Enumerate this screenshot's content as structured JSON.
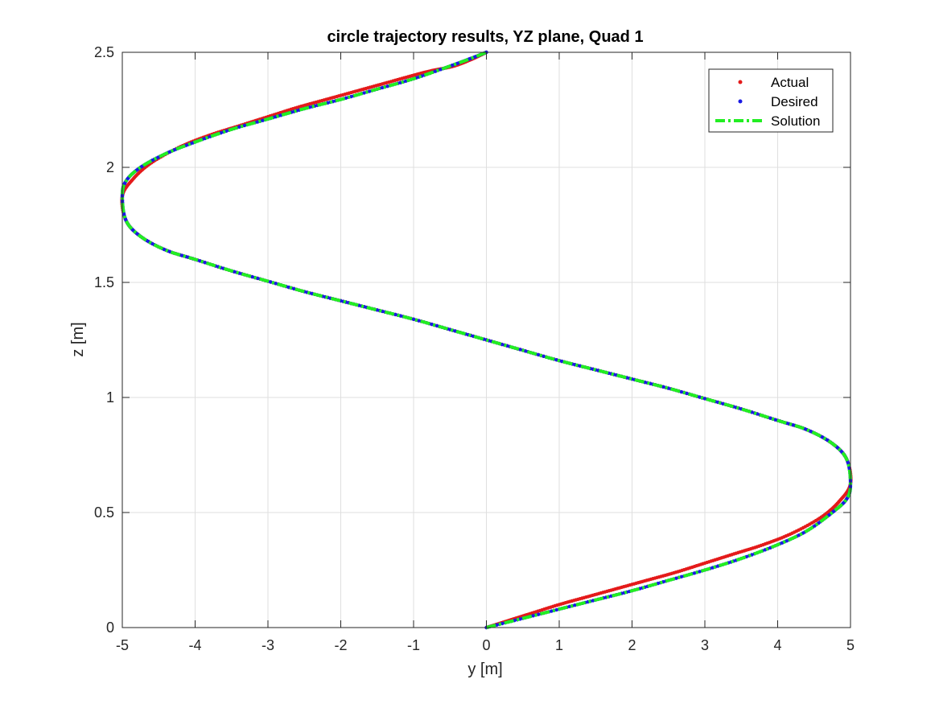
{
  "chart_data": {
    "type": "line",
    "title": "circle trajectory results, YZ plane, Quad 1",
    "xlabel": "y [m]",
    "ylabel": "z [m]",
    "xlim": [
      -5,
      5
    ],
    "ylim": [
      0,
      2.5
    ],
    "xticks": [
      -5,
      -4,
      -3,
      -2,
      -1,
      0,
      1,
      2,
      3,
      4,
      5
    ],
    "yticks": [
      0,
      0.5,
      1,
      1.5,
      2,
      2.5
    ],
    "xtick_labels": [
      "-5",
      "-4",
      "-3",
      "-2",
      "-1",
      "0",
      "1",
      "2",
      "3",
      "4",
      "5"
    ],
    "ytick_labels": [
      "0",
      "0.5",
      "1",
      "1.5",
      "2",
      "2.5"
    ],
    "grid": true,
    "legend_position": "top-right",
    "series": [
      {
        "name": "Actual",
        "style": "dots",
        "color": "#e41a1a",
        "points": [
          [
            0.0,
            0.0
          ],
          [
            0.3,
            0.03
          ],
          [
            0.6,
            0.06
          ],
          [
            1.0,
            0.1
          ],
          [
            1.4,
            0.135
          ],
          [
            1.8,
            0.17
          ],
          [
            2.2,
            0.205
          ],
          [
            2.6,
            0.24
          ],
          [
            3.0,
            0.28
          ],
          [
            3.4,
            0.32
          ],
          [
            3.8,
            0.36
          ],
          [
            4.2,
            0.41
          ],
          [
            4.6,
            0.48
          ],
          [
            4.85,
            0.55
          ],
          [
            5.0,
            0.625
          ],
          [
            4.95,
            0.73
          ],
          [
            4.75,
            0.8
          ],
          [
            4.4,
            0.86
          ],
          [
            4.0,
            0.9
          ],
          [
            3.5,
            0.95
          ],
          [
            3.0,
            0.995
          ],
          [
            2.5,
            1.04
          ],
          [
            2.0,
            1.08
          ],
          [
            1.5,
            1.12
          ],
          [
            1.0,
            1.16
          ],
          [
            0.5,
            1.205
          ],
          [
            0.0,
            1.25
          ],
          [
            -0.5,
            1.295
          ],
          [
            -1.0,
            1.34
          ],
          [
            -1.5,
            1.38
          ],
          [
            -2.0,
            1.42
          ],
          [
            -2.5,
            1.46
          ],
          [
            -3.0,
            1.505
          ],
          [
            -3.5,
            1.55
          ],
          [
            -4.0,
            1.6
          ],
          [
            -4.4,
            1.64
          ],
          [
            -4.75,
            1.7
          ],
          [
            -4.95,
            1.77
          ],
          [
            -5.0,
            1.875
          ],
          [
            -4.85,
            1.95
          ],
          [
            -4.6,
            2.02
          ],
          [
            -4.2,
            2.09
          ],
          [
            -3.8,
            2.14
          ],
          [
            -3.4,
            2.18
          ],
          [
            -3.0,
            2.22
          ],
          [
            -2.6,
            2.26
          ],
          [
            -2.2,
            2.295
          ],
          [
            -1.8,
            2.33
          ],
          [
            -1.4,
            2.365
          ],
          [
            -1.0,
            2.4
          ],
          [
            -0.75,
            2.42
          ],
          [
            -0.45,
            2.44
          ],
          [
            -0.2,
            2.47
          ],
          [
            0.0,
            2.5
          ]
        ]
      },
      {
        "name": "Desired",
        "style": "dots",
        "color": "#1a1ae4",
        "points": [
          [
            0.0,
            0.0
          ],
          [
            0.5,
            0.04
          ],
          [
            1.0,
            0.08
          ],
          [
            1.5,
            0.12
          ],
          [
            2.0,
            0.16
          ],
          [
            2.5,
            0.205
          ],
          [
            3.0,
            0.25
          ],
          [
            3.5,
            0.3
          ],
          [
            4.0,
            0.36
          ],
          [
            4.4,
            0.42
          ],
          [
            4.75,
            0.5
          ],
          [
            4.95,
            0.56
          ],
          [
            5.0,
            0.625
          ],
          [
            4.95,
            0.73
          ],
          [
            4.75,
            0.8
          ],
          [
            4.4,
            0.86
          ],
          [
            4.0,
            0.9
          ],
          [
            3.5,
            0.95
          ],
          [
            3.0,
            0.995
          ],
          [
            2.5,
            1.04
          ],
          [
            2.0,
            1.08
          ],
          [
            1.5,
            1.12
          ],
          [
            1.0,
            1.16
          ],
          [
            0.5,
            1.205
          ],
          [
            0.0,
            1.25
          ],
          [
            -0.5,
            1.295
          ],
          [
            -1.0,
            1.34
          ],
          [
            -1.5,
            1.38
          ],
          [
            -2.0,
            1.42
          ],
          [
            -2.5,
            1.46
          ],
          [
            -3.0,
            1.505
          ],
          [
            -3.5,
            1.55
          ],
          [
            -4.0,
            1.6
          ],
          [
            -4.4,
            1.64
          ],
          [
            -4.75,
            1.7
          ],
          [
            -4.95,
            1.77
          ],
          [
            -5.0,
            1.875
          ],
          [
            -4.95,
            1.94
          ],
          [
            -4.75,
            2.0
          ],
          [
            -4.4,
            2.06
          ],
          [
            -4.0,
            2.11
          ],
          [
            -3.5,
            2.165
          ],
          [
            -3.0,
            2.21
          ],
          [
            -2.5,
            2.255
          ],
          [
            -2.0,
            2.295
          ],
          [
            -1.5,
            2.34
          ],
          [
            -1.0,
            2.385
          ],
          [
            -0.5,
            2.44
          ],
          [
            -0.2,
            2.475
          ],
          [
            0.0,
            2.5
          ]
        ]
      },
      {
        "name": "Solution",
        "style": "dash-dot",
        "color": "#22ee22",
        "points": [
          [
            0.0,
            0.0
          ],
          [
            0.5,
            0.04
          ],
          [
            1.0,
            0.08
          ],
          [
            1.5,
            0.12
          ],
          [
            2.0,
            0.16
          ],
          [
            2.5,
            0.205
          ],
          [
            3.0,
            0.25
          ],
          [
            3.5,
            0.3
          ],
          [
            4.0,
            0.36
          ],
          [
            4.4,
            0.42
          ],
          [
            4.75,
            0.5
          ],
          [
            4.95,
            0.56
          ],
          [
            5.0,
            0.625
          ],
          [
            4.95,
            0.73
          ],
          [
            4.75,
            0.8
          ],
          [
            4.4,
            0.86
          ],
          [
            4.0,
            0.9
          ],
          [
            3.5,
            0.95
          ],
          [
            3.0,
            0.995
          ],
          [
            2.5,
            1.04
          ],
          [
            2.0,
            1.08
          ],
          [
            1.5,
            1.12
          ],
          [
            1.0,
            1.16
          ],
          [
            0.5,
            1.205
          ],
          [
            0.0,
            1.25
          ],
          [
            -0.5,
            1.295
          ],
          [
            -1.0,
            1.34
          ],
          [
            -1.5,
            1.38
          ],
          [
            -2.0,
            1.42
          ],
          [
            -2.5,
            1.46
          ],
          [
            -3.0,
            1.505
          ],
          [
            -3.5,
            1.55
          ],
          [
            -4.0,
            1.6
          ],
          [
            -4.4,
            1.64
          ],
          [
            -4.75,
            1.7
          ],
          [
            -4.95,
            1.77
          ],
          [
            -5.0,
            1.875
          ],
          [
            -4.95,
            1.94
          ],
          [
            -4.75,
            2.0
          ],
          [
            -4.4,
            2.06
          ],
          [
            -4.0,
            2.11
          ],
          [
            -3.5,
            2.165
          ],
          [
            -3.0,
            2.21
          ],
          [
            -2.5,
            2.255
          ],
          [
            -2.0,
            2.295
          ],
          [
            -1.5,
            2.34
          ],
          [
            -1.0,
            2.385
          ],
          [
            -0.5,
            2.44
          ],
          [
            -0.2,
            2.475
          ],
          [
            0.0,
            2.5
          ]
        ]
      }
    ]
  }
}
